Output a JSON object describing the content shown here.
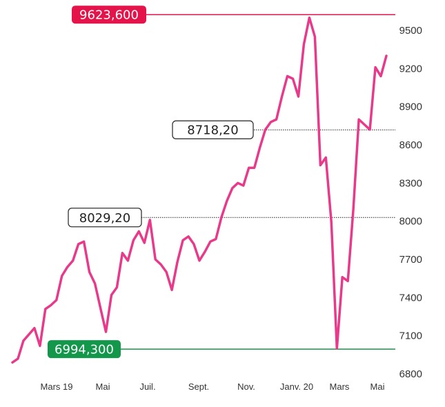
{
  "chart_data": {
    "type": "line",
    "x_ticks": [
      "Mars 19",
      "Mai",
      "Juil.",
      "Sept.",
      "Nov.",
      "Janv. 20",
      "Mars",
      "Mai"
    ],
    "y_ticks": [
      "9500",
      "9200",
      "8900",
      "8600",
      "8300",
      "8000",
      "7700",
      "7400",
      "7100",
      "6800"
    ],
    "ylim": [
      6800,
      9600
    ],
    "line_color": "#e8398a",
    "grid": false,
    "annotations": [
      {
        "name": "max",
        "label": "9623,600",
        "value": 9623.6,
        "style": "filled",
        "color": "#e4144a"
      },
      {
        "name": "level-high",
        "label": "8718,20",
        "value": 8718.2,
        "style": "outline",
        "color": "#333333"
      },
      {
        "name": "level-low",
        "label": "8029,20",
        "value": 8029.2,
        "style": "outline",
        "color": "#333333"
      },
      {
        "name": "min",
        "label": "6994,300",
        "value": 6994.3,
        "style": "filled",
        "color": "#12974b"
      }
    ],
    "series": [
      {
        "values": [
          6890,
          6920,
          7060,
          7110,
          7160,
          7020,
          7310,
          7340,
          7380,
          7570,
          7640,
          7690,
          7820,
          7840,
          7600,
          7510,
          7320,
          7130,
          7420,
          7480,
          7750,
          7690,
          7850,
          7920,
          7830,
          8010,
          7700,
          7660,
          7600,
          7460,
          7680,
          7850,
          7880,
          7820,
          7690,
          7760,
          7840,
          7860,
          8030,
          8160,
          8260,
          8300,
          8280,
          8420,
          8420,
          8580,
          8720,
          8780,
          8800,
          8980,
          9140,
          9120,
          8980,
          9390,
          9600,
          9450,
          8440,
          8500,
          7990,
          7000,
          7560,
          7530,
          8100,
          8800,
          8760,
          8720,
          9210,
          9140,
          9300
        ]
      }
    ]
  }
}
